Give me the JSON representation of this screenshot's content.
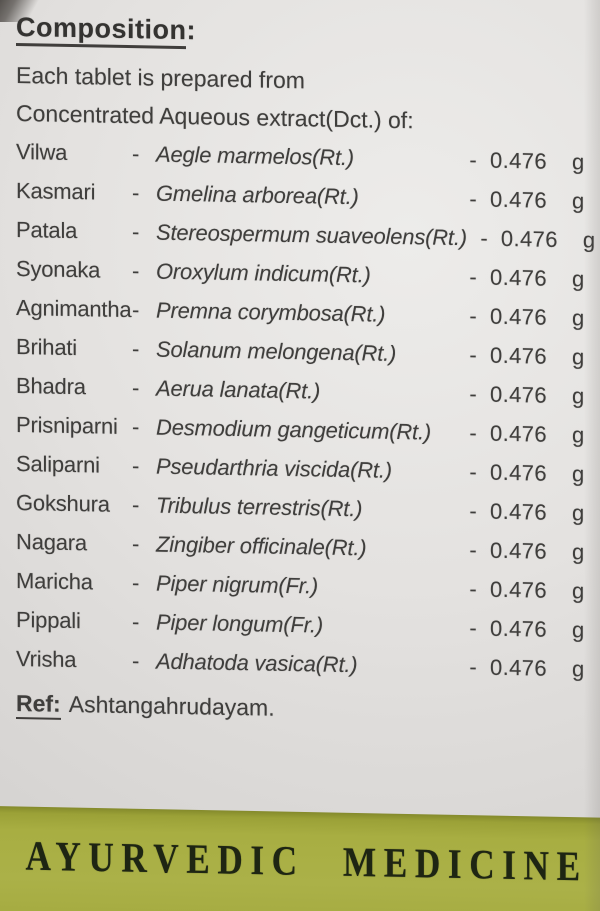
{
  "photo": {
    "background_hex": "#e4e2e0",
    "ink_hex": "#3f3e3c"
  },
  "composition": {
    "title": "Composition",
    "title_colon": ":",
    "intro_lines": [
      "Each tablet is prepared from",
      "Concentrated Aqueous extract(Dct.) of:"
    ],
    "ingredients": [
      {
        "name": "Vilwa",
        "dash": "-",
        "botanical": "Aegle marmelos(Rt.)",
        "dash2": "-",
        "qty": "0.476",
        "unit": "g"
      },
      {
        "name": "Kasmari",
        "dash": "-",
        "botanical": "Gmelina arborea(Rt.)",
        "dash2": "-",
        "qty": "0.476",
        "unit": "g"
      },
      {
        "name": "Patala",
        "dash": "-",
        "botanical": "Stereospermum suaveolens(Rt.)",
        "dash2": "-",
        "qty": "0.476",
        "unit": "g"
      },
      {
        "name": "Syonaka",
        "dash": "-",
        "botanical": "Oroxylum indicum(Rt.)",
        "dash2": "-",
        "qty": "0.476",
        "unit": "g"
      },
      {
        "name": "Agnimantha",
        "dash": "-",
        "botanical": "Premna corymbosa(Rt.)",
        "dash2": "-",
        "qty": "0.476",
        "unit": "g"
      },
      {
        "name": "Brihati",
        "dash": "-",
        "botanical": "Solanum melongena(Rt.)",
        "dash2": "-",
        "qty": "0.476",
        "unit": "g"
      },
      {
        "name": "Bhadra",
        "dash": "-",
        "botanical": "Aerua lanata(Rt.)",
        "dash2": "-",
        "qty": "0.476",
        "unit": "g"
      },
      {
        "name": "Prisniparni",
        "dash": "-",
        "botanical": "Desmodium gangeticum(Rt.)",
        "dash2": "-",
        "qty": "0.476",
        "unit": "g"
      },
      {
        "name": "Saliparni",
        "dash": "-",
        "botanical": "Pseudarthria viscida(Rt.)",
        "dash2": "-",
        "qty": "0.476",
        "unit": "g"
      },
      {
        "name": "Gokshura",
        "dash": "-",
        "botanical": "Tribulus terrestris(Rt.)",
        "dash2": "-",
        "qty": "0.476",
        "unit": "g"
      },
      {
        "name": "Nagara",
        "dash": "-",
        "botanical": "Zingiber officinale(Rt.)",
        "dash2": "-",
        "qty": "0.476",
        "unit": "g"
      },
      {
        "name": "Maricha",
        "dash": "-",
        "botanical": "Piper nigrum(Fr.)",
        "dash2": "-",
        "qty": "0.476",
        "unit": "g"
      },
      {
        "name": "Pippali",
        "dash": "-",
        "botanical": "Piper longum(Fr.)",
        "dash2": "-",
        "qty": "0.476",
        "unit": "g"
      },
      {
        "name": "Vrisha",
        "dash": "-",
        "botanical": "Adhatoda vasica(Rt.)",
        "dash2": "-",
        "qty": "0.476",
        "unit": "g"
      }
    ],
    "reference_label": "Ref:",
    "reference_text": "Ashtangahrudayam."
  },
  "footer_band": {
    "text": "AYURVEDIC MEDICINE",
    "band_color": "#a8ae42",
    "text_color": "#1e2513"
  }
}
